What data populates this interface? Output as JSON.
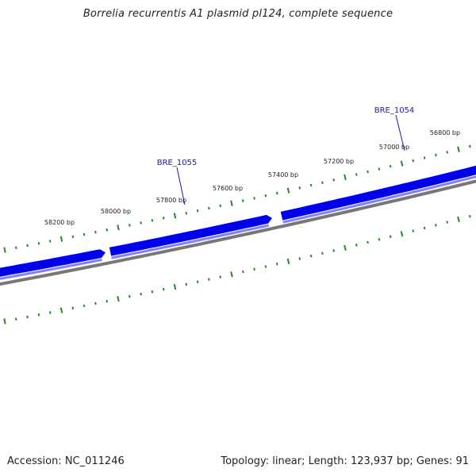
{
  "title": "Borrelia recurrentis A1 plasmid pl124, complete sequence",
  "footer": {
    "accession": "Accession: NC_011246",
    "summary": "Topology: linear; Length: 123,937 bp; Genes: 91"
  },
  "colors": {
    "gene": "#0000ee",
    "gene_shade": "#7f7fff",
    "backbone": "#777777",
    "ticks": "#228b22",
    "label_line": "#1a1aa6"
  },
  "ruler": {
    "labels": [
      "56800 bp",
      "57000 bp",
      "57200 bp",
      "57400 bp",
      "57600 bp",
      "57800 bp",
      "58000 bp",
      "58200 bp"
    ]
  },
  "genes": [
    {
      "name": "BRE_1055"
    },
    {
      "name": "BRE_1054"
    }
  ]
}
